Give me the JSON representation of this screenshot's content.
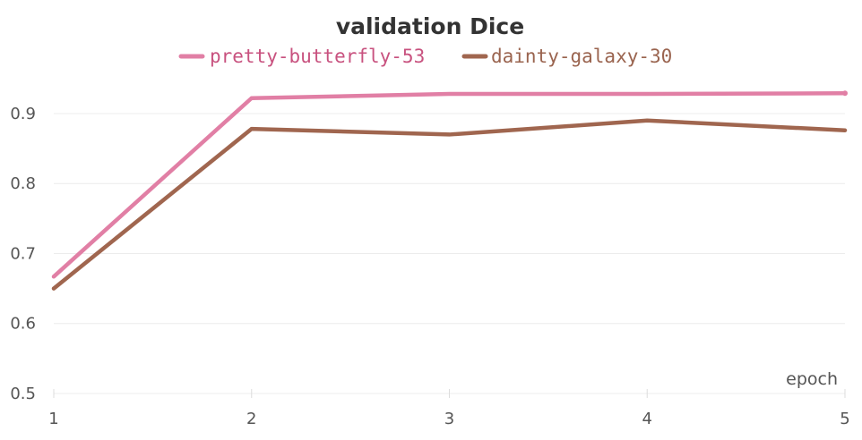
{
  "chart_data": {
    "type": "line",
    "title": "validation Dice",
    "xlabel": "epoch",
    "ylabel": "",
    "x": [
      1,
      2,
      3,
      4,
      5
    ],
    "xlim": [
      1,
      5
    ],
    "ylim": [
      0.5,
      0.96
    ],
    "y_ticks": [
      "0.5",
      "0.6",
      "0.7",
      "0.8",
      "0.9"
    ],
    "x_ticks": [
      "1",
      "2",
      "3",
      "4",
      "5"
    ],
    "grid": "horizontal",
    "legend_position": "top-center",
    "series": [
      {
        "name": "pretty-butterfly-53",
        "color": "#e17fa5",
        "values": [
          0.667,
          0.922,
          0.928,
          0.928,
          0.929
        ]
      },
      {
        "name": "dainty-galaxy-30",
        "color": "#a0664f",
        "values": [
          0.65,
          0.878,
          0.87,
          0.89,
          0.876
        ]
      }
    ]
  }
}
